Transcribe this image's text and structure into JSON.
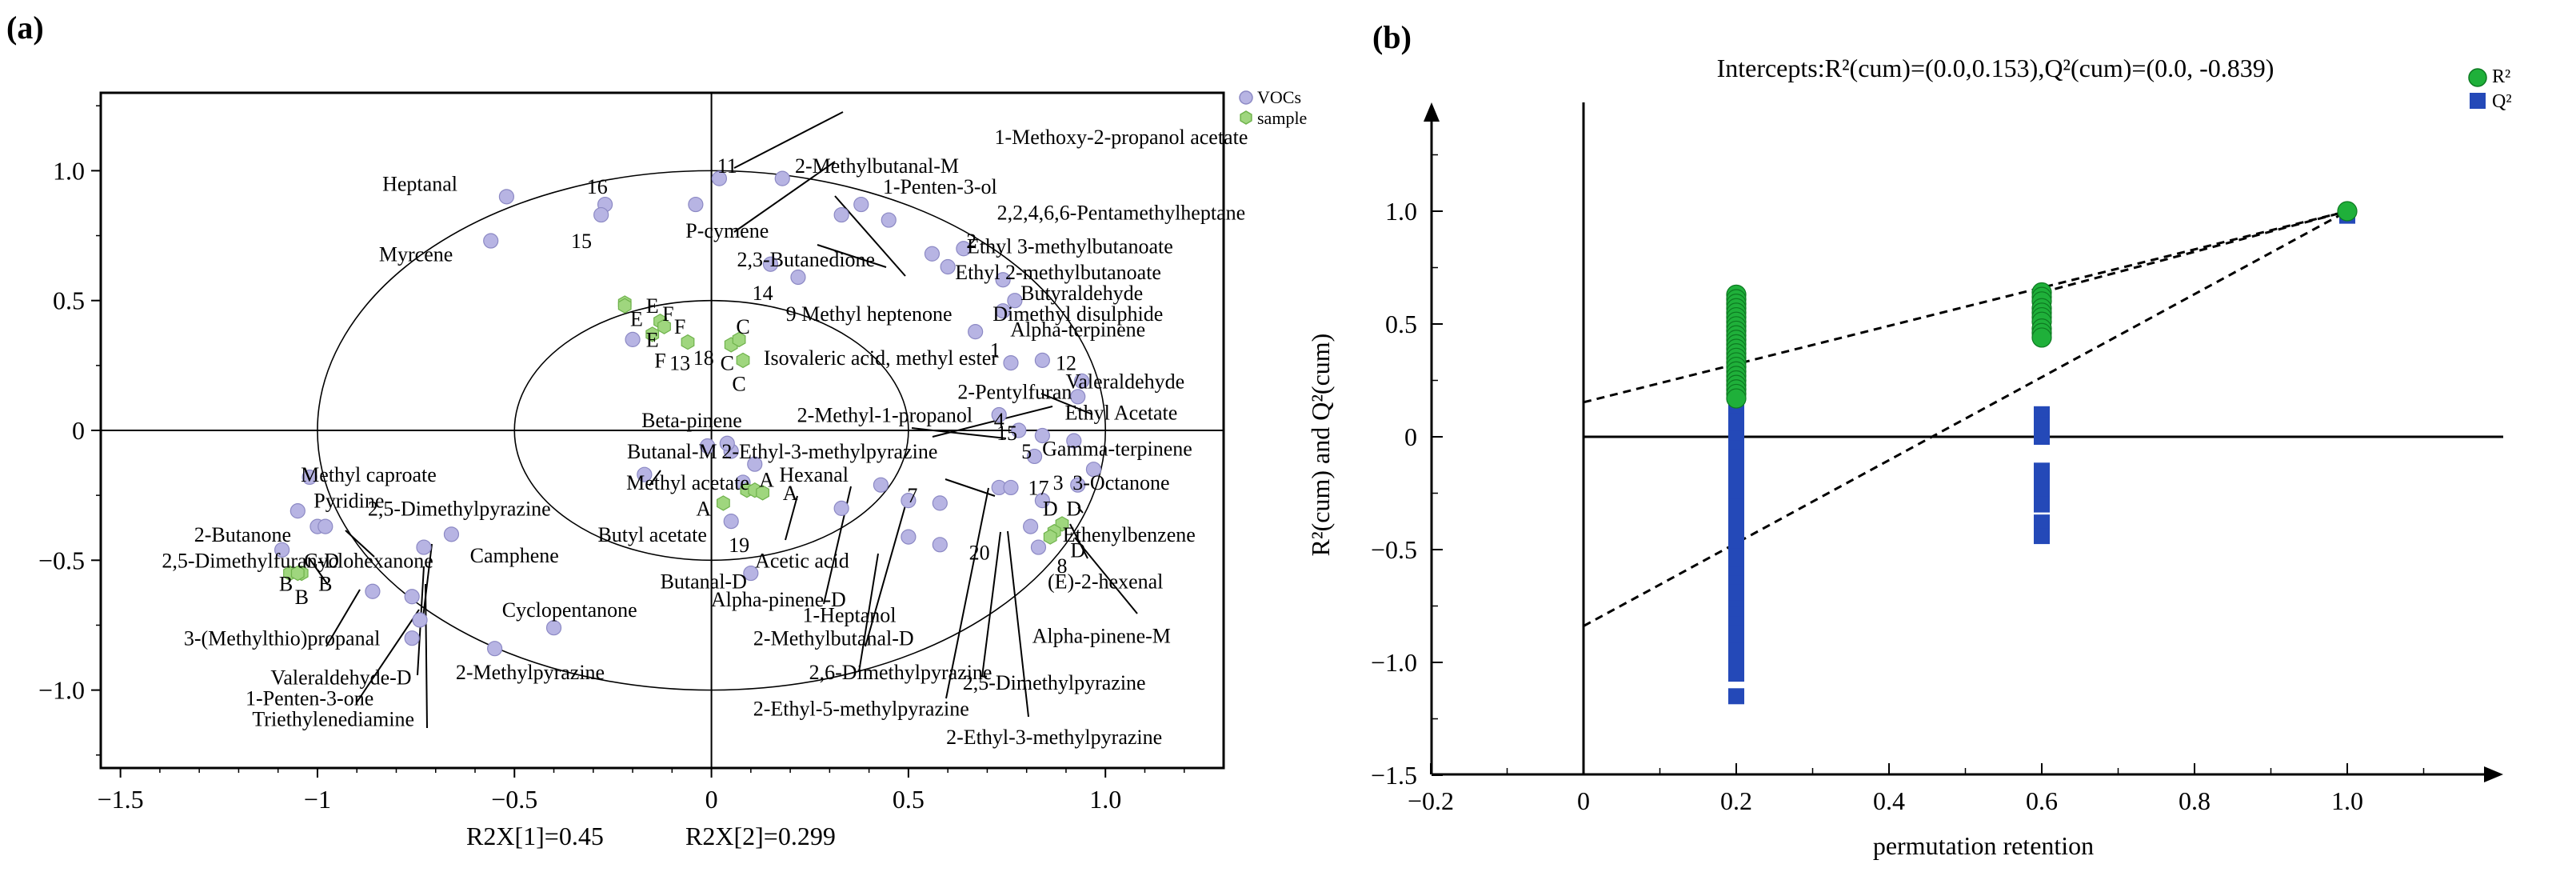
{
  "figure": {
    "colors": {
      "vocs": "#b7b4e3",
      "vocs_stroke": "#8c89c4",
      "sample": "#9fd67e",
      "sample_stroke": "#6fb24c",
      "r2": "#1fb03a",
      "q2": "#2449b8"
    }
  },
  "chart_data": [
    {
      "id": "a",
      "panel_label": "(a)",
      "type": "scatter",
      "title": "",
      "xlabel": "",
      "ylabel": "",
      "xlim": [
        -1.55,
        1.3
      ],
      "ylim": [
        -1.3,
        1.3
      ],
      "x_ticks": [
        -1.5,
        -1,
        -0.5,
        0,
        0.5,
        1.0
      ],
      "x_tick_labels": [
        "−1.5",
        "−1",
        "−0.5",
        "0",
        "0.5",
        "1.0"
      ],
      "y_ticks": [
        -1.0,
        -0.5,
        0,
        0.5,
        1.0
      ],
      "y_tick_labels": [
        "−1.0",
        "−0.5",
        "0",
        "0.5",
        "1.0"
      ],
      "axis_caption_1": "R2X[1]=0.45",
      "axis_caption_2": "R2X[2]=0.299",
      "ellipses": [
        {
          "rx": 1.0,
          "ry": 1.0
        },
        {
          "rx": 0.5,
          "ry": 0.5
        }
      ],
      "legend": [
        {
          "name": "VOCs",
          "marker": "circle"
        },
        {
          "name": "sample",
          "marker": "hexagon"
        }
      ],
      "vocs_points": [
        [
          -0.52,
          0.9
        ],
        [
          -0.27,
          0.87
        ],
        [
          -0.28,
          0.83
        ],
        [
          -0.04,
          0.87
        ],
        [
          -0.56,
          0.73
        ],
        [
          0.02,
          0.97
        ],
        [
          0.18,
          0.97
        ],
        [
          0.33,
          0.83
        ],
        [
          0.38,
          0.87
        ],
        [
          0.45,
          0.81
        ],
        [
          0.15,
          0.64
        ],
        [
          0.22,
          0.59
        ],
        [
          0.56,
          0.68
        ],
        [
          0.6,
          0.63
        ],
        [
          0.64,
          0.7
        ],
        [
          0.74,
          0.58
        ],
        [
          0.77,
          0.5
        ],
        [
          0.74,
          0.46
        ],
        [
          0.67,
          0.38
        ],
        [
          0.76,
          0.26
        ],
        [
          0.84,
          0.27
        ],
        [
          0.94,
          0.19
        ],
        [
          0.93,
          0.13
        ],
        [
          -0.2,
          0.35
        ],
        [
          0.73,
          0.06
        ],
        [
          0.78,
          0.0
        ],
        [
          0.84,
          -0.02
        ],
        [
          0.92,
          -0.04
        ],
        [
          0.82,
          -0.1
        ],
        [
          0.97,
          -0.15
        ],
        [
          0.93,
          -0.21
        ],
        [
          0.73,
          -0.22
        ],
        [
          0.76,
          -0.22
        ],
        [
          0.84,
          -0.27
        ],
        [
          0.81,
          -0.37
        ],
        [
          0.83,
          -0.45
        ],
        [
          0.58,
          -0.28
        ],
        [
          0.58,
          -0.44
        ],
        [
          0.5,
          -0.41
        ],
        [
          0.5,
          -0.27
        ],
        [
          0.43,
          -0.21
        ],
        [
          0.33,
          -0.3
        ],
        [
          0.11,
          -0.13
        ],
        [
          0.08,
          -0.2
        ],
        [
          0.05,
          -0.35
        ],
        [
          0.05,
          -0.08
        ],
        [
          0.04,
          -0.05
        ],
        [
          -0.01,
          -0.06
        ],
        [
          0.1,
          -0.55
        ],
        [
          -0.17,
          -0.17
        ],
        [
          -1.02,
          -0.18
        ],
        [
          -1.05,
          -0.31
        ],
        [
          -1.09,
          -0.46
        ],
        [
          -1.0,
          -0.37
        ],
        [
          -0.86,
          -0.62
        ],
        [
          -0.76,
          -0.64
        ],
        [
          -0.74,
          -0.73
        ],
        [
          -0.76,
          -0.8
        ],
        [
          -0.4,
          -0.76
        ],
        [
          -0.55,
          -0.84
        ],
        [
          -0.66,
          -0.4
        ],
        [
          -0.73,
          -0.45
        ],
        [
          -0.98,
          -0.37
        ]
      ],
      "sample_points": [
        [
          -0.22,
          0.49
        ],
        [
          -0.22,
          0.48
        ],
        [
          -0.13,
          0.42
        ],
        [
          -0.12,
          0.4
        ],
        [
          -0.15,
          0.37
        ],
        [
          -0.06,
          0.34
        ],
        [
          0.05,
          0.33
        ],
        [
          0.07,
          0.35
        ],
        [
          0.08,
          0.27
        ],
        [
          0.09,
          -0.23
        ],
        [
          0.11,
          -0.23
        ],
        [
          0.13,
          -0.24
        ],
        [
          0.03,
          -0.28
        ],
        [
          -1.04,
          -0.55
        ],
        [
          -1.07,
          -0.55
        ],
        [
          -1.05,
          -0.55
        ],
        [
          0.89,
          -0.36
        ],
        [
          0.87,
          -0.39
        ],
        [
          0.86,
          -0.41
        ]
      ],
      "labels": [
        {
          "text": "Heptanal",
          "x": -0.74,
          "y": 0.95
        },
        {
          "text": "16",
          "x": -0.29,
          "y": 0.94
        },
        {
          "text": "11",
          "x": 0.04,
          "y": 1.02
        },
        {
          "text": "2-Methylbutanal-M",
          "x": 0.42,
          "y": 1.02
        },
        {
          "text": "1-Methoxy-2-propanol acetate",
          "x": 1.04,
          "y": 1.13
        },
        {
          "text": "1-Penten-3-ol",
          "x": 0.58,
          "y": 0.94
        },
        {
          "text": "2,2,4,6,6-Pentamethylheptane",
          "x": 1.04,
          "y": 0.84
        },
        {
          "text": "15",
          "x": -0.33,
          "y": 0.73
        },
        {
          "text": "P-cymene",
          "x": 0.04,
          "y": 0.77
        },
        {
          "text": "Myrcene",
          "x": -0.75,
          "y": 0.68
        },
        {
          "text": "2",
          "x": 0.66,
          "y": 0.73
        },
        {
          "text": "Ethyl 3-methylbutanoate",
          "x": 0.91,
          "y": 0.71
        },
        {
          "text": "2,3-Butanedione",
          "x": 0.24,
          "y": 0.66
        },
        {
          "text": "Ethyl 2-methylbutanoate",
          "x": 0.88,
          "y": 0.61
        },
        {
          "text": "14",
          "x": 0.13,
          "y": 0.53
        },
        {
          "text": "Butyraldehyde",
          "x": 0.94,
          "y": 0.53
        },
        {
          "text": "9 Methyl heptenone",
          "x": 0.4,
          "y": 0.45
        },
        {
          "text": "Dimethyl disulphide",
          "x": 0.93,
          "y": 0.45
        },
        {
          "text": "E",
          "x": -0.15,
          "y": 0.48
        },
        {
          "text": "E",
          "x": -0.19,
          "y": 0.43
        },
        {
          "text": "F",
          "x": -0.11,
          "y": 0.45
        },
        {
          "text": "F",
          "x": -0.08,
          "y": 0.4
        },
        {
          "text": "C",
          "x": 0.08,
          "y": 0.4
        },
        {
          "text": "Alpha-terpinene",
          "x": 0.93,
          "y": 0.39
        },
        {
          "text": "E",
          "x": -0.15,
          "y": 0.35
        },
        {
          "text": "18",
          "x": -0.02,
          "y": 0.28
        },
        {
          "text": "F",
          "x": -0.13,
          "y": 0.27
        },
        {
          "text": "13",
          "x": -0.08,
          "y": 0.26
        },
        {
          "text": "C",
          "x": 0.04,
          "y": 0.26
        },
        {
          "text": "Isovaleric acid, methyl ester",
          "x": 0.43,
          "y": 0.28
        },
        {
          "text": "1",
          "x": 0.72,
          "y": 0.31
        },
        {
          "text": "12",
          "x": 0.9,
          "y": 0.26
        },
        {
          "text": "C",
          "x": 0.07,
          "y": 0.18
        },
        {
          "text": "Valeraldehyde",
          "x": 1.05,
          "y": 0.19
        },
        {
          "text": "2-Pentylfuran",
          "x": 0.77,
          "y": 0.15
        },
        {
          "text": "Ethyl Acetate",
          "x": 1.04,
          "y": 0.07
        },
        {
          "text": "Beta-pinene",
          "x": -0.05,
          "y": 0.04
        },
        {
          "text": "2-Methyl-1-propanol",
          "x": 0.44,
          "y": 0.06
        },
        {
          "text": "4",
          "x": 0.73,
          "y": 0.04
        },
        {
          "text": "15",
          "x": 0.75,
          "y": -0.01
        },
        {
          "text": "Butanal-M",
          "x": -0.1,
          "y": -0.08
        },
        {
          "text": "2-Ethyl-3-methylpyrazine",
          "x": 0.3,
          "y": -0.08
        },
        {
          "text": "5",
          "x": 0.8,
          "y": -0.08
        },
        {
          "text": "Gamma-terpinene",
          "x": 1.03,
          "y": -0.07
        },
        {
          "text": "Methyl caproate",
          "x": -0.87,
          "y": -0.17
        },
        {
          "text": "Hexanal",
          "x": 0.26,
          "y": -0.17
        },
        {
          "text": "Methyl acetate",
          "x": -0.06,
          "y": -0.2
        },
        {
          "text": "A",
          "x": 0.14,
          "y": -0.19
        },
        {
          "text": "3",
          "x": 0.88,
          "y": -0.2
        },
        {
          "text": "3-Octanone",
          "x": 1.04,
          "y": -0.2
        },
        {
          "text": "A",
          "x": 0.2,
          "y": -0.24
        },
        {
          "text": "Pyridine",
          "x": -0.92,
          "y": -0.27
        },
        {
          "text": "2,5-Dimethylpyrazine",
          "x": -0.64,
          "y": -0.3
        },
        {
          "text": "A",
          "x": -0.02,
          "y": -0.3
        },
        {
          "text": "7",
          "x": 0.51,
          "y": -0.25
        },
        {
          "text": "17",
          "x": 0.83,
          "y": -0.22
        },
        {
          "text": "D",
          "x": 0.86,
          "y": -0.3
        },
        {
          "text": "D",
          "x": 0.92,
          "y": -0.3
        },
        {
          "text": "2-Butanone",
          "x": -1.19,
          "y": -0.4
        },
        {
          "text": "Butyl acetate",
          "x": -0.15,
          "y": -0.4
        },
        {
          "text": "Ethenylbenzene",
          "x": 1.06,
          "y": -0.4
        },
        {
          "text": "Cyclohexanone",
          "x": -0.87,
          "y": -0.5
        },
        {
          "text": "Camphene",
          "x": -0.5,
          "y": -0.48
        },
        {
          "text": "19",
          "x": 0.07,
          "y": -0.44
        },
        {
          "text": "20",
          "x": 0.68,
          "y": -0.47
        },
        {
          "text": "D",
          "x": 0.93,
          "y": -0.46
        },
        {
          "text": "2,5-Dimethylfuran-D",
          "x": -1.17,
          "y": -0.5
        },
        {
          "text": "Acetic acid",
          "x": 0.23,
          "y": -0.5
        },
        {
          "text": "8",
          "x": 0.89,
          "y": -0.52
        },
        {
          "text": "B",
          "x": -1.08,
          "y": -0.59
        },
        {
          "text": "B",
          "x": -0.98,
          "y": -0.59
        },
        {
          "text": "Butanal-D",
          "x": -0.02,
          "y": -0.58
        },
        {
          "text": "(E)-2-hexenal",
          "x": 1.0,
          "y": -0.58
        },
        {
          "text": "B",
          "x": -1.04,
          "y": -0.64
        },
        {
          "text": "Alpha-pinene-D",
          "x": 0.17,
          "y": -0.65
        },
        {
          "text": "Cyclopentanone",
          "x": -0.36,
          "y": -0.69
        },
        {
          "text": "1-Heptanol",
          "x": 0.35,
          "y": -0.71
        },
        {
          "text": "3-(Methylthio)propanal",
          "x": -1.09,
          "y": -0.8
        },
        {
          "text": "2-Methylbutanal-D",
          "x": 0.31,
          "y": -0.8
        },
        {
          "text": "Alpha-pinene-M",
          "x": 0.99,
          "y": -0.79
        },
        {
          "text": "2-Methylpyrazine",
          "x": -0.46,
          "y": -0.93
        },
        {
          "text": "2,6-Dimethylpyrazine",
          "x": 0.48,
          "y": -0.93
        },
        {
          "text": "Valeraldehyde-D",
          "x": -0.94,
          "y": -0.95
        },
        {
          "text": "2,5-Dimethylpyrazine",
          "x": 0.87,
          "y": -0.97
        },
        {
          "text": "1-Penten-3-one",
          "x": -1.02,
          "y": -1.03
        },
        {
          "text": "2-Ethyl-5-methylpyrazine",
          "x": 0.38,
          "y": -1.07
        },
        {
          "text": "Triethylenediamine",
          "x": -0.96,
          "y": -1.11
        },
        {
          "text": "2-Ethyl-3-methylpyrazine",
          "x": 0.87,
          "y": -1.18
        }
      ]
    },
    {
      "id": "b",
      "panel_label": "(b)",
      "type": "scatter",
      "title": "Intercepts:R²(cum)=(0.0,0.153),Q²(cum)=(0.0, -0.839)",
      "xlabel": "permutation retention",
      "ylabel": "R²(cum) and Q²(cum)",
      "xlim": [
        -0.25,
        1.2
      ],
      "ylim": [
        -1.5,
        1.5
      ],
      "x_ticks": [
        -0.2,
        0,
        0.2,
        0.4,
        0.6,
        0.8,
        1.0
      ],
      "x_tick_labels": [
        "−0.2",
        "0",
        "0.2",
        "0.4",
        "0.6",
        "0.8",
        "1.0"
      ],
      "y_ticks": [
        -1.5,
        -1.0,
        -0.5,
        0,
        0.5,
        1.0
      ],
      "y_tick_labels": [
        "−1.5",
        "−1.0",
        "−0.5",
        "0",
        "0.5",
        "1.0"
      ],
      "legend": [
        {
          "name": "R²",
          "marker": "circle"
        },
        {
          "name": "Q²",
          "marker": "square"
        }
      ],
      "series": [
        {
          "name": "R²",
          "x": [
            0.2,
            0.2,
            0.2,
            0.2,
            0.2,
            0.2,
            0.2,
            0.2,
            0.2,
            0.2,
            0.2,
            0.2,
            0.2,
            0.2,
            0.2,
            0.2,
            0.2,
            0.2,
            0.2,
            0.2,
            0.2,
            0.2,
            0.2,
            0.2,
            0.6,
            0.6,
            0.6,
            0.6,
            0.6,
            0.6,
            0.6,
            0.6,
            0.6,
            0.6,
            1.0
          ],
          "y": [
            0.63,
            0.61,
            0.59,
            0.57,
            0.55,
            0.53,
            0.51,
            0.49,
            0.47,
            0.45,
            0.43,
            0.41,
            0.39,
            0.37,
            0.35,
            0.33,
            0.31,
            0.29,
            0.27,
            0.25,
            0.23,
            0.21,
            0.19,
            0.17,
            0.64,
            0.62,
            0.6,
            0.57,
            0.55,
            0.53,
            0.51,
            0.48,
            0.46,
            0.44,
            1.0
          ]
        },
        {
          "name": "Q²",
          "x": [
            0.2,
            0.2,
            0.2,
            0.2,
            0.2,
            0.2,
            0.2,
            0.2,
            0.2,
            0.2,
            0.2,
            0.2,
            0.2,
            0.2,
            0.2,
            0.2,
            0.2,
            0.2,
            0.2,
            0.2,
            0.2,
            0.2,
            0.2,
            0.2,
            0.2,
            0.2,
            0.2,
            0.2,
            0.2,
            0.2,
            0.2,
            0.2,
            0.2,
            0.2,
            0.2,
            0.2,
            0.2,
            0.2,
            0.6,
            0.6,
            0.6,
            0.6,
            0.6,
            0.6,
            0.6,
            0.6,
            0.6,
            1.0
          ],
          "y": [
            0.15,
            0.11,
            0.07,
            0.03,
            -0.01,
            -0.05,
            -0.09,
            -0.13,
            -0.17,
            -0.21,
            -0.25,
            -0.31,
            -0.35,
            -0.39,
            -0.43,
            -0.47,
            -0.51,
            -0.55,
            -0.59,
            -0.63,
            -0.67,
            -0.71,
            -0.75,
            -0.79,
            -0.83,
            -0.87,
            -0.91,
            -0.95,
            -0.99,
            -1.05,
            -1.15,
            -0.45,
            -0.49,
            -0.53,
            -0.57,
            -0.61,
            -0.65,
            -0.69,
            0.1,
            0.05,
            0.0,
            -0.15,
            -0.2,
            -0.25,
            -0.3,
            -0.38,
            -0.44,
            0.98
          ]
        }
      ],
      "regression_lines": [
        {
          "name": "R²",
          "x": [
            0.0,
            1.0
          ],
          "y": [
            0.153,
            1.0
          ]
        },
        {
          "name": "Q²",
          "x": [
            0.0,
            1.0
          ],
          "y": [
            -0.839,
            1.0
          ]
        }
      ]
    }
  ]
}
